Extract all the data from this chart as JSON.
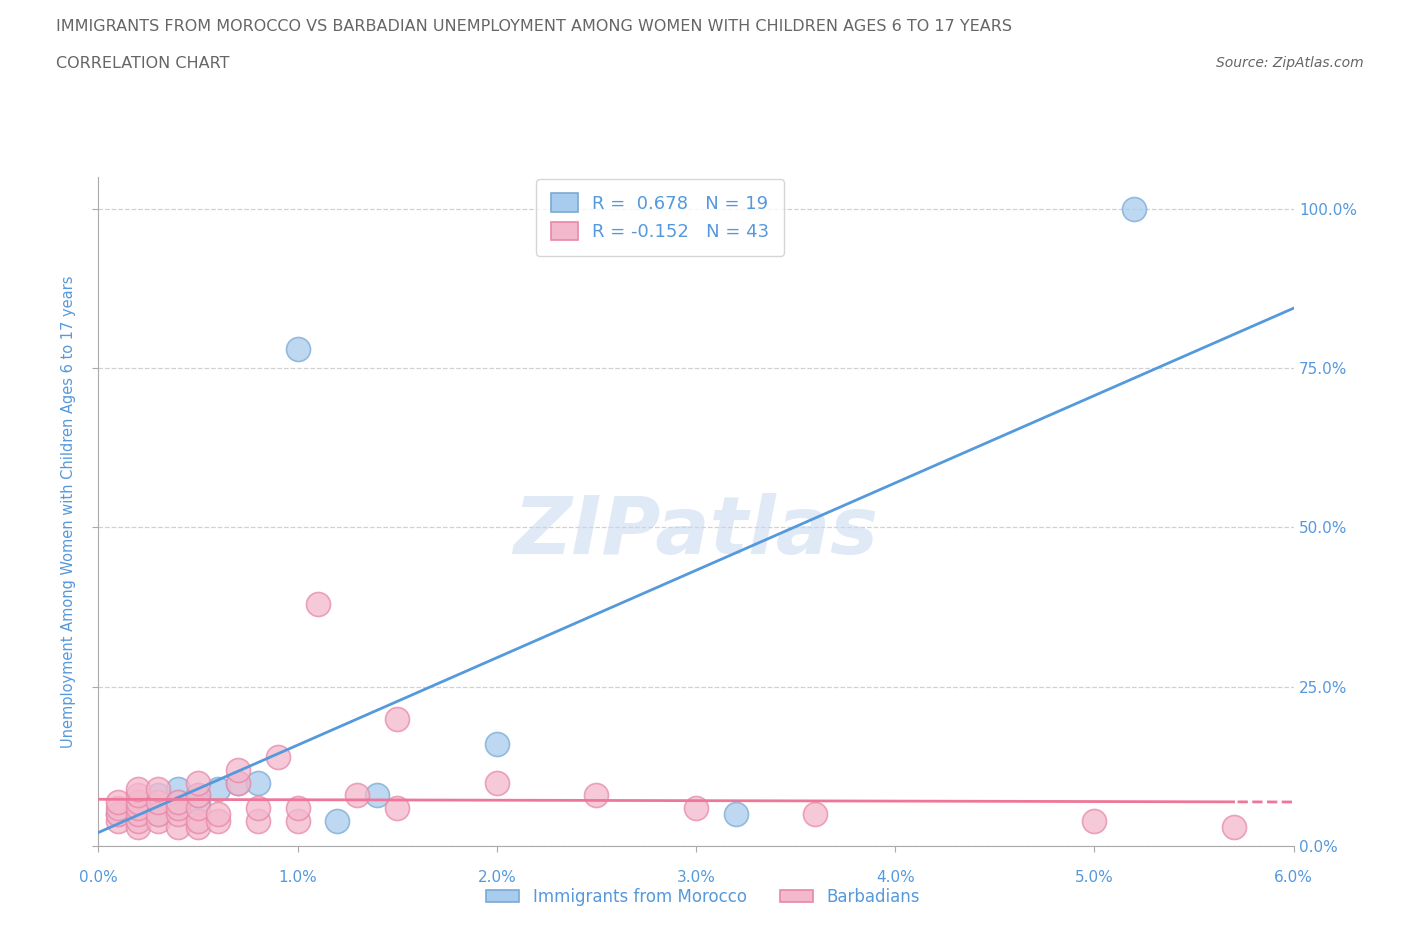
{
  "title": "IMMIGRANTS FROM MOROCCO VS BARBADIAN UNEMPLOYMENT AMONG WOMEN WITH CHILDREN AGES 6 TO 17 YEARS",
  "subtitle": "CORRELATION CHART",
  "source": "Source: ZipAtlas.com",
  "ylabel": "Unemployment Among Women with Children Ages 6 to 17 years",
  "xlim": [
    0.0,
    0.06
  ],
  "ylim": [
    0.0,
    1.05
  ],
  "xticks": [
    0.0,
    0.01,
    0.02,
    0.03,
    0.04,
    0.05,
    0.06
  ],
  "xticklabels": [
    "0.0%",
    "1.0%",
    "2.0%",
    "3.0%",
    "4.0%",
    "5.0%",
    "6.0%"
  ],
  "yticks_right": [
    0.0,
    0.25,
    0.5,
    0.75,
    1.0
  ],
  "yticklabels_right": [
    "0.0%",
    "25.0%",
    "50.0%",
    "75.0%",
    "100.0%"
  ],
  "grid_color": "#cccccc",
  "watermark": "ZIPatlas",
  "watermark_color": "#c8d8f0",
  "background_color": "#ffffff",
  "blue_color": "#a8ccee",
  "pink_color": "#f4b8cc",
  "blue_edge_color": "#7aaad4",
  "pink_edge_color": "#e888a8",
  "blue_line_color": "#5599dd",
  "pink_line_color": "#ee7799",
  "legend_R1": "0.678",
  "legend_N1": "19",
  "legend_R2": "-0.152",
  "legend_N2": "43",
  "legend_label1": "Immigrants from Morocco",
  "legend_label2": "Barbadians",
  "title_color": "#666666",
  "tick_color": "#5599dd",
  "morocco_x": [
    0.001,
    0.002,
    0.002,
    0.003,
    0.003,
    0.004,
    0.004,
    0.004,
    0.005,
    0.005,
    0.006,
    0.007,
    0.008,
    0.01,
    0.012,
    0.014,
    0.02,
    0.032,
    0.052
  ],
  "morocco_y": [
    0.05,
    0.05,
    0.07,
    0.05,
    0.08,
    0.06,
    0.07,
    0.09,
    0.07,
    0.08,
    0.09,
    0.1,
    0.1,
    0.78,
    0.04,
    0.08,
    0.16,
    0.05,
    1.0
  ],
  "barbadian_x": [
    0.001,
    0.001,
    0.001,
    0.001,
    0.002,
    0.002,
    0.002,
    0.002,
    0.002,
    0.002,
    0.002,
    0.003,
    0.003,
    0.003,
    0.003,
    0.004,
    0.004,
    0.004,
    0.004,
    0.005,
    0.005,
    0.005,
    0.005,
    0.005,
    0.006,
    0.006,
    0.007,
    0.007,
    0.008,
    0.008,
    0.009,
    0.01,
    0.01,
    0.011,
    0.013,
    0.015,
    0.015,
    0.02,
    0.025,
    0.03,
    0.036,
    0.05,
    0.057
  ],
  "barbadian_y": [
    0.04,
    0.05,
    0.06,
    0.07,
    0.03,
    0.04,
    0.05,
    0.06,
    0.07,
    0.08,
    0.09,
    0.04,
    0.05,
    0.07,
    0.09,
    0.03,
    0.05,
    0.06,
    0.07,
    0.03,
    0.04,
    0.06,
    0.08,
    0.1,
    0.04,
    0.05,
    0.1,
    0.12,
    0.04,
    0.06,
    0.14,
    0.04,
    0.06,
    0.38,
    0.08,
    0.06,
    0.2,
    0.1,
    0.08,
    0.06,
    0.05,
    0.04,
    0.03
  ]
}
